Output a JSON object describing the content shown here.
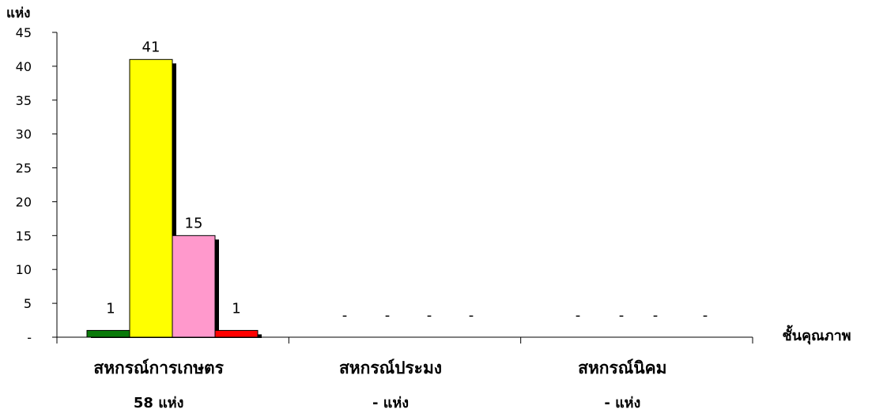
{
  "chart_data": {
    "type": "bar",
    "ylabel": "แห่ง",
    "xlabel": "ชั้นคุณภาพ",
    "ylim": [
      0,
      45
    ],
    "yticks": [
      "-",
      "5",
      "10",
      "15",
      "20",
      "25",
      "30",
      "35",
      "40",
      "45"
    ],
    "yticks_values": [
      0,
      5,
      10,
      15,
      20,
      25,
      30,
      35,
      40,
      45
    ],
    "categories": [
      "สหกรณ์การเกษตร",
      "สหกรณ์ประมง",
      "สหกรณ์นิคม"
    ],
    "category_totals": [
      "58  แห่ง",
      "-       แห่ง",
      "-       แห่ง"
    ],
    "series": [
      {
        "color": "#0a7a0a",
        "values": [
          1,
          0,
          0
        ],
        "labels": [
          "1",
          "-",
          "-"
        ]
      },
      {
        "color": "#ffff00",
        "values": [
          41,
          0,
          0
        ],
        "labels": [
          "41",
          "-",
          "-"
        ]
      },
      {
        "color": "#ff99cc",
        "values": [
          15,
          0,
          0
        ],
        "labels": [
          "15",
          "-",
          "-"
        ]
      },
      {
        "color": "#ff0000",
        "values": [
          1,
          0,
          0
        ],
        "labels": [
          "1",
          "-",
          "-"
        ]
      }
    ],
    "grid": false,
    "legend": "none"
  }
}
